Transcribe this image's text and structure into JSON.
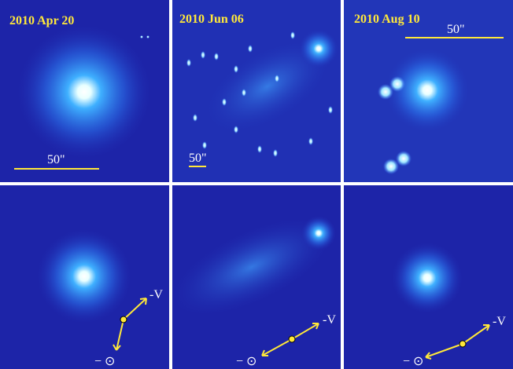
{
  "top_panels": [
    {
      "date": "2010 Apr 20",
      "scale_label": "50\""
    },
    {
      "date": "2010 Jun 06",
      "scale_label": "50\""
    },
    {
      "date": "2010 Aug 10",
      "scale_label": "50\""
    }
  ],
  "bottom_panels": [
    {
      "velocity_label": "-V",
      "sun_label": "− ⊙"
    },
    {
      "velocity_label": "-V",
      "sun_label": "− ⊙"
    },
    {
      "velocity_label": "-V",
      "sun_label": "− ⊙"
    }
  ]
}
